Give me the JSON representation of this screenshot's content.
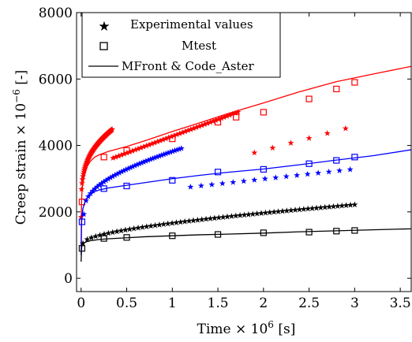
{
  "chart_data": {
    "type": "line",
    "xlabel": "Time × 10",
    "xlabel_exp": "6",
    "xlabel_unit": " [s]",
    "ylabel": "Creep strain × 10",
    "ylabel_exp": "−6",
    "ylabel_unit": " [-]",
    "xlim": [
      -0.05,
      3.62
    ],
    "ylim": [
      -400,
      8000
    ],
    "xticks": [
      0,
      0.5,
      1,
      1.5,
      2,
      2.5,
      3,
      3.5
    ],
    "xtick_labels": [
      "0",
      "0.5",
      "1",
      "1.5",
      "2",
      "2.5",
      "3",
      "3.5"
    ],
    "yticks": [
      0,
      2000,
      4000,
      6000,
      8000
    ],
    "ytick_labels": [
      "0",
      "2000",
      "4000",
      "6000",
      "8000"
    ],
    "grid": false,
    "legend_position": "top-left",
    "legend": [
      {
        "label": "Experimental values",
        "marker": "star"
      },
      {
        "label": "Mtest",
        "marker": "square"
      },
      {
        "label": "MFront & Code_Aster",
        "marker": "line"
      }
    ],
    "series": [
      {
        "color": "#ff0000",
        "model": {
          "x": [
            0,
            0.005,
            0.01,
            0.02,
            0.04,
            0.07,
            0.1,
            0.15,
            0.2,
            0.3,
            0.5,
            0.7,
            1.0,
            1.3,
            1.6,
            2.0,
            2.4,
            2.8,
            3.2,
            3.62
          ],
          "y": [
            1000,
            2300,
            2650,
            2900,
            3150,
            3380,
            3520,
            3650,
            3720,
            3820,
            3970,
            4140,
            4420,
            4680,
            4950,
            5280,
            5620,
            5920,
            6150,
            6380
          ]
        },
        "mtest": {
          "x": [
            0.01,
            0.25,
            0.5,
            1.0,
            1.5,
            1.7,
            2.0,
            2.5,
            2.8,
            3.0
          ],
          "y": [
            2300,
            3650,
            3850,
            4200,
            4700,
            4850,
            5000,
            5400,
            5700,
            5900
          ]
        },
        "experimental": [
          {
            "from": 0.0,
            "to": 0.34,
            "n": 70,
            "y0": 1500,
            "a": 2150,
            "b": 0.2,
            "slope": 700
          },
          {
            "from": 0.35,
            "to": 1.72,
            "n": 46,
            "y0": 3620,
            "a": 0,
            "b": 1,
            "slope": 1010
          },
          {
            "from": 1.9,
            "to": 2.9,
            "n": 6,
            "y0": 3780,
            "a": 0,
            "b": 1,
            "slope": 730
          }
        ]
      },
      {
        "color": "#0000ff",
        "model": {
          "x": [
            0,
            0.005,
            0.01,
            0.02,
            0.04,
            0.07,
            0.1,
            0.15,
            0.2,
            0.3,
            0.5,
            0.7,
            1.0,
            1.3,
            1.6,
            2.0,
            2.4,
            2.8,
            3.2,
            3.62
          ],
          "y": [
            700,
            1650,
            1900,
            2100,
            2280,
            2420,
            2520,
            2610,
            2660,
            2720,
            2800,
            2880,
            3000,
            3100,
            3190,
            3290,
            3420,
            3560,
            3690,
            3870
          ]
        },
        "mtest": {
          "x": [
            0.01,
            0.25,
            0.5,
            1.0,
            1.5,
            2.0,
            2.5,
            2.8,
            3.0
          ],
          "y": [
            1700,
            2700,
            2780,
            2950,
            3200,
            3280,
            3450,
            3550,
            3650
          ]
        },
        "experimental": [
          {
            "from": 0.03,
            "to": 1.1,
            "n": 45,
            "y0": 1900,
            "a": 700,
            "b": 0.35,
            "slope": 380
          },
          {
            "from": 1.2,
            "to": 2.95,
            "n": 16,
            "y0": 2750,
            "a": 0,
            "b": 1,
            "slope": 300
          }
        ]
      },
      {
        "color": "#000000",
        "model": {
          "x": [
            0,
            0.005,
            0.01,
            0.02,
            0.04,
            0.07,
            0.1,
            0.2,
            0.3,
            0.5,
            0.7,
            1.0,
            1.3,
            1.6,
            2.0,
            2.4,
            2.8,
            3.2,
            3.62
          ],
          "y": [
            500,
            900,
            1000,
            1050,
            1080,
            1110,
            1130,
            1170,
            1190,
            1220,
            1250,
            1280,
            1310,
            1330,
            1360,
            1400,
            1430,
            1460,
            1490
          ]
        },
        "mtest": {
          "x": [
            0.01,
            0.25,
            0.5,
            1.0,
            1.5,
            2.0,
            2.5,
            2.8,
            3.0
          ],
          "y": [
            900,
            1200,
            1230,
            1280,
            1320,
            1370,
            1390,
            1420,
            1440
          ]
        },
        "experimental": [
          {
            "from": 0.02,
            "to": 3.0,
            "n": 65,
            "y0": 1050,
            "a": 170,
            "b": 0.5,
            "slope": 80
          }
        ]
      }
    ]
  }
}
